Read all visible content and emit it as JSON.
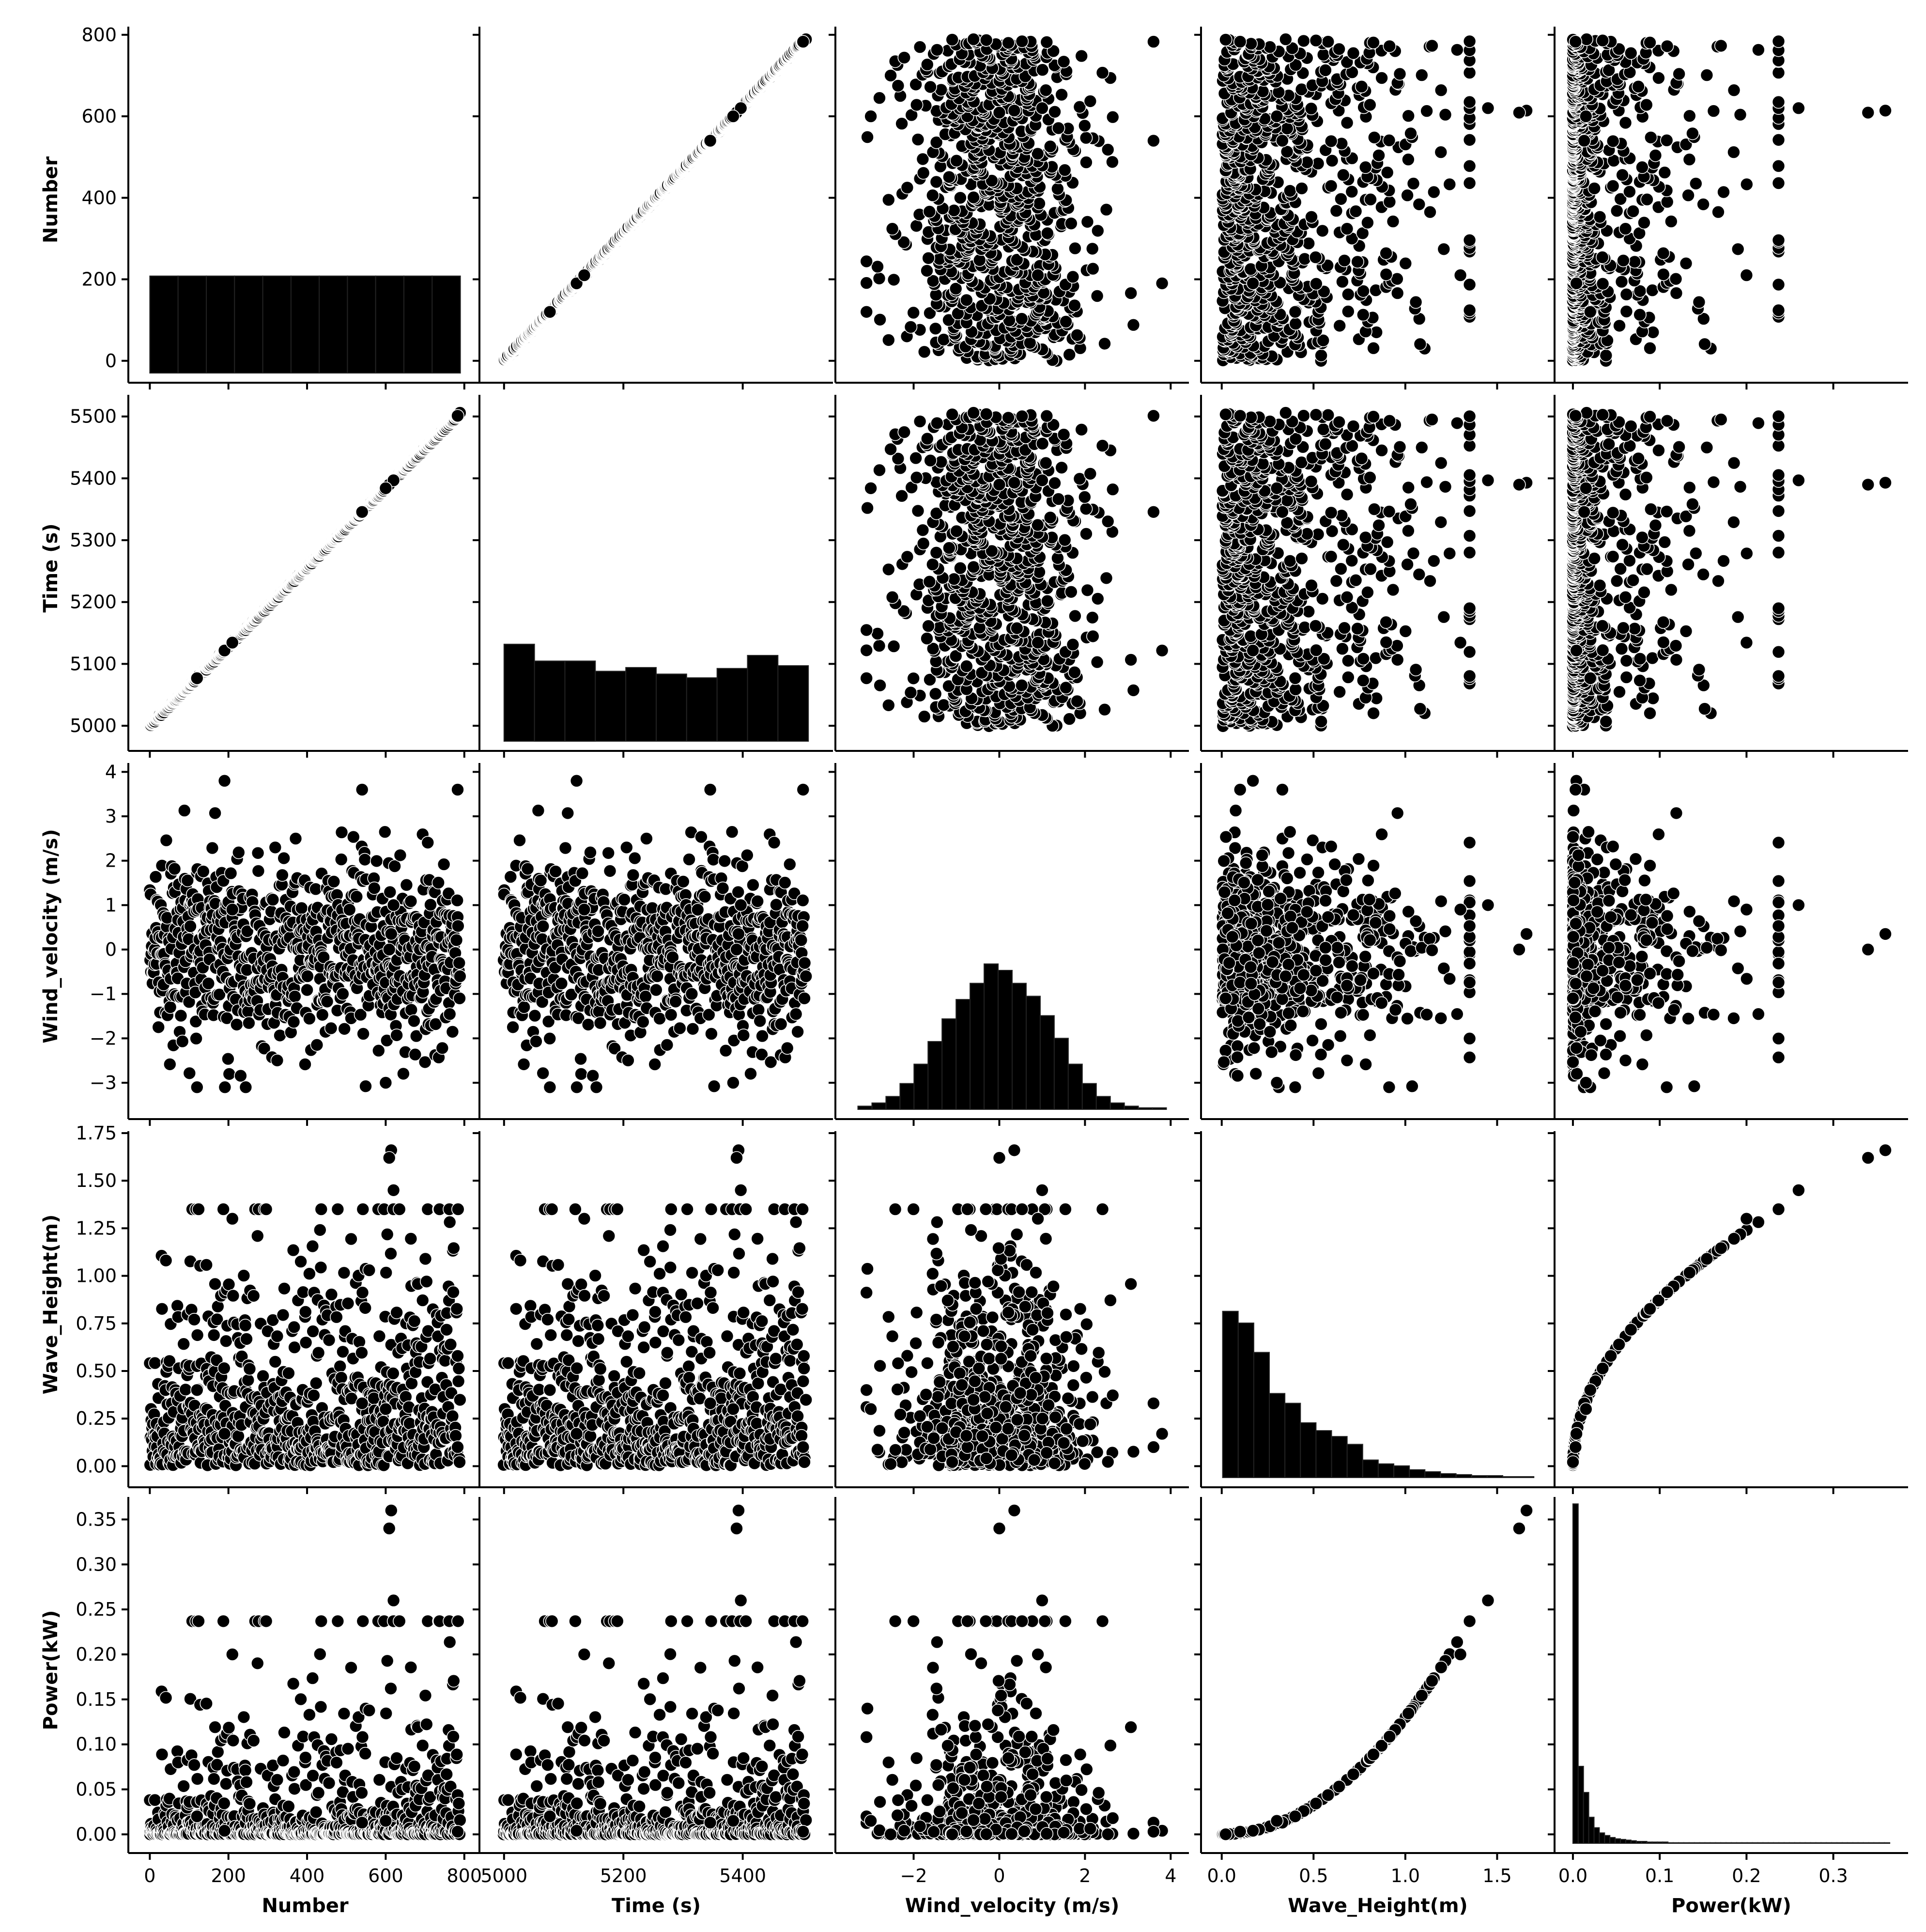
{
  "chart_data": {
    "type": "scatter",
    "variables": [
      {
        "name": "Number",
        "label": "Number",
        "range": [
          -30,
          820
        ],
        "ticks": [
          0,
          200,
          400,
          600,
          800
        ],
        "tick_labels": [
          "0",
          "200",
          "400",
          "600",
          "800"
        ]
      },
      {
        "name": "Time",
        "label": "Time (s)",
        "range": [
          4975,
          5535
        ],
        "ticks": [
          5000,
          5100,
          5200,
          5300,
          5400,
          5500
        ],
        "tick_labels": [
          "5000",
          "5100",
          "5200",
          "5300",
          "5400",
          "5500"
        ],
        "x_ticks": [
          5000,
          5200,
          5400
        ],
        "x_tick_labels": [
          "5000",
          "5200",
          "5400"
        ]
      },
      {
        "name": "Wind_velocity",
        "label": "Wind_velocity (m/s)",
        "range": [
          -3.6,
          4.2
        ],
        "ticks": [
          -3,
          -2,
          -1,
          0,
          1,
          2,
          3,
          4
        ],
        "tick_labels": [
          "−3",
          "−2",
          "−1",
          "0",
          "1",
          "2",
          "3",
          "4"
        ],
        "x_ticks": [
          -2,
          0,
          2,
          4
        ],
        "x_tick_labels": [
          "−2",
          "0",
          "2",
          "4"
        ]
      },
      {
        "name": "Wave_Height",
        "label": "Wave_Height(m)",
        "range": [
          -0.06,
          1.76
        ],
        "ticks": [
          0.0,
          0.25,
          0.5,
          0.75,
          1.0,
          1.25,
          1.5,
          1.75
        ],
        "tick_labels": [
          "0.00",
          "0.25",
          "0.50",
          "0.75",
          "1.00",
          "1.25",
          "1.50",
          "1.75"
        ],
        "x_ticks": [
          0.0,
          0.5,
          1.0,
          1.5
        ],
        "x_tick_labels": [
          "0.0",
          "0.5",
          "1.0",
          "1.5"
        ]
      },
      {
        "name": "Power",
        "label": "Power(kW)",
        "range": [
          -0.01,
          0.375
        ],
        "ticks": [
          0.0,
          0.05,
          0.1,
          0.15,
          0.2,
          0.25,
          0.3,
          0.35
        ],
        "tick_labels": [
          "0.00",
          "0.05",
          "0.10",
          "0.15",
          "0.20",
          "0.25",
          "0.30",
          "0.35"
        ],
        "x_ticks": [
          0.0,
          0.1,
          0.2,
          0.3
        ],
        "x_tick_labels": [
          "0.0",
          "0.1",
          "0.2",
          "0.3"
        ]
      }
    ],
    "n_points": 790,
    "relationships": {
      "time_vs_number": "Time = 5000 + 0.64 * Number",
      "power_vs_wave_height": "Power = 0.13 * Wave_Height^2"
    },
    "diagonal_histograms": [
      {
        "variable": "Number",
        "bins": 11,
        "counts": [
          72,
          72,
          72,
          72,
          72,
          72,
          72,
          72,
          72,
          72,
          72
        ]
      },
      {
        "variable": "Time",
        "bins": 10,
        "counts": [
          104,
          86,
          86,
          75,
          79,
          72,
          68,
          78,
          92,
          81
        ]
      },
      {
        "variable": "Wind_velocity",
        "bins": 22,
        "counts": [
          2,
          4,
          8,
          16,
          28,
          42,
          56,
          68,
          78,
          90,
          86,
          78,
          70,
          58,
          44,
          28,
          16,
          8,
          4,
          2,
          1,
          1
        ]
      },
      {
        "variable": "Wave_Height",
        "bins": 20,
        "counts": [
          170,
          158,
          128,
          86,
          76,
          56,
          48,
          42,
          34,
          18,
          14,
          12,
          8,
          6,
          4,
          3,
          2,
          2,
          1,
          1
        ]
      },
      {
        "variable": "Power",
        "bins": 60,
        "counts": [
          520,
          118,
          78,
          40,
          24,
          16,
          12,
          9,
          7,
          6,
          5,
          4,
          3,
          3,
          2,
          2,
          2,
          2,
          1,
          1,
          1,
          1,
          1,
          1,
          1,
          1,
          1,
          1,
          1,
          1,
          1,
          1,
          1,
          1,
          1,
          1,
          1,
          1,
          1,
          1,
          1,
          1,
          1,
          1,
          1,
          1,
          1,
          1,
          1,
          1,
          1,
          1,
          1,
          1,
          1,
          1,
          1,
          1,
          1,
          1
        ]
      }
    ],
    "notable_points": [
      {
        "Number": 614,
        "Wind_velocity": 0.35,
        "Wave_Height": 1.66,
        "Power": 0.36
      },
      {
        "Number": 609,
        "Wind_velocity": 0.0,
        "Wave_Height": 1.62,
        "Power": 0.34
      },
      {
        "Number": 620,
        "Wind_velocity": 1.0,
        "Wave_Height": 1.45,
        "Power": 0.26
      },
      {
        "Number": 190,
        "Wind_velocity": 3.8,
        "Wave_Height": 0.17,
        "Power": 0.004
      },
      {
        "Number": 540,
        "Wind_velocity": 3.6,
        "Wave_Height": 0.33,
        "Power": 0.013
      },
      {
        "Number": 783,
        "Wind_velocity": 3.6,
        "Wave_Height": 0.1,
        "Power": 0.003
      },
      {
        "Number": 210,
        "Wind_velocity": 0.9,
        "Wave_Height": 1.3,
        "Power": 0.2
      },
      {
        "Number": 120,
        "Wind_velocity": -3.1,
        "Wave_Height": 0.4,
        "Power": 0.02
      },
      {
        "Number": 600,
        "Wind_velocity": -3.0,
        "Wave_Height": 0.3,
        "Power": 0.015
      }
    ],
    "marker_color": "#000000",
    "grid": false,
    "legend": "none"
  }
}
